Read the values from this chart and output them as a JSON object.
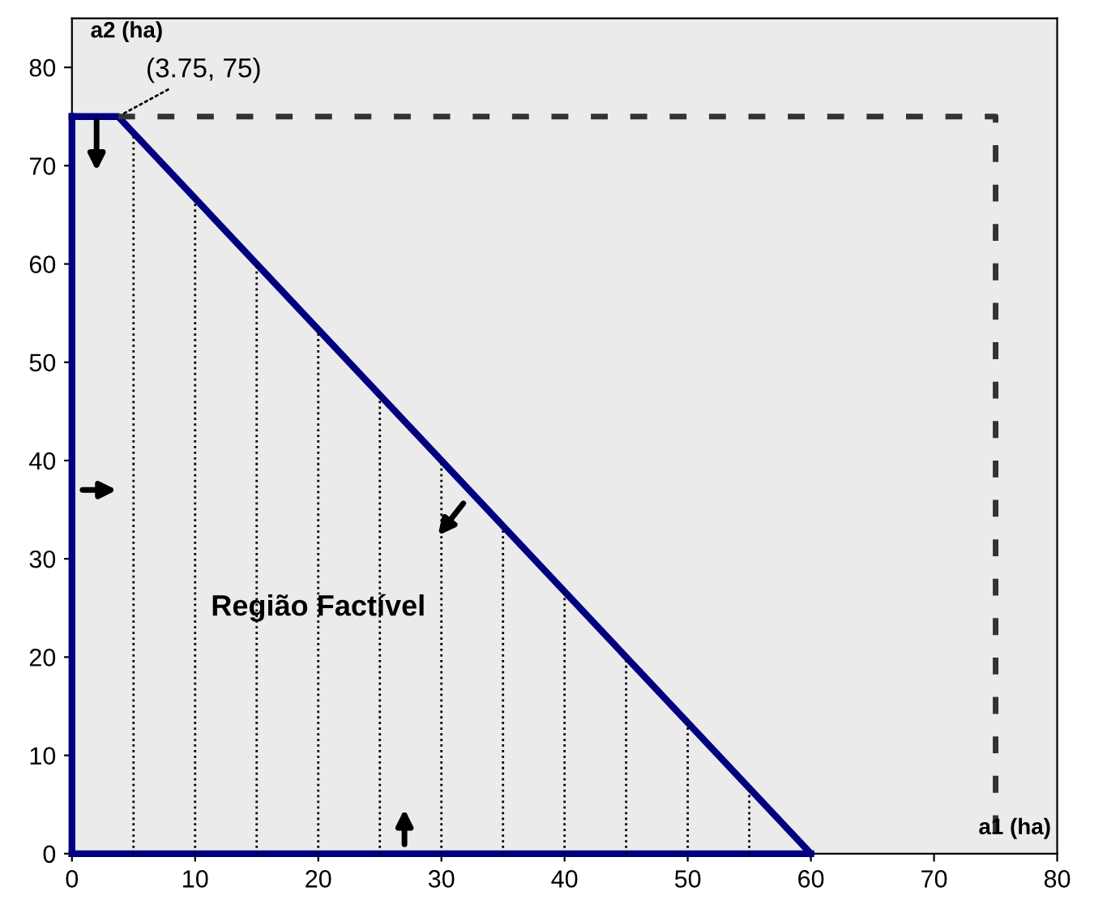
{
  "chart_data": {
    "type": "line",
    "xlabel": "a1 (ha)",
    "ylabel": "a2 (ha)",
    "xlim": [
      0,
      80
    ],
    "ylim": [
      0,
      85
    ],
    "xticks": [
      0,
      10,
      20,
      30,
      40,
      50,
      60,
      70,
      80
    ],
    "yticks": [
      0,
      10,
      20,
      30,
      40,
      50,
      60,
      70,
      80
    ],
    "grid": false,
    "series": [
      {
        "color": "#000080",
        "x": [
          0,
          3.75,
          60
        ],
        "values": [
          75,
          75,
          0
        ],
        "line_style": "solid"
      },
      {
        "color": "#000080",
        "x": [
          0,
          0
        ],
        "values": [
          0,
          75
        ],
        "line_style": "solid"
      },
      {
        "color": "#000080",
        "x": [
          0,
          60
        ],
        "values": [
          0,
          0
        ],
        "line_style": "solid"
      },
      {
        "color": "#333333",
        "x": [
          3.75,
          75,
          75
        ],
        "values": [
          75,
          75,
          0
        ],
        "line_style": "dashed"
      },
      {
        "color": "#000000",
        "x": [
          5,
          5
        ],
        "values": [
          0,
          73.3
        ],
        "line_style": "dotted"
      },
      {
        "color": "#000000",
        "x": [
          10,
          10
        ],
        "values": [
          0,
          66.7
        ],
        "line_style": "dotted"
      },
      {
        "color": "#000000",
        "x": [
          15,
          15
        ],
        "values": [
          0,
          60
        ],
        "line_style": "dotted"
      },
      {
        "color": "#000000",
        "x": [
          20,
          20
        ],
        "values": [
          0,
          53.3
        ],
        "line_style": "dotted"
      },
      {
        "color": "#000000",
        "x": [
          25,
          25
        ],
        "values": [
          0,
          46.7
        ],
        "line_style": "dotted"
      },
      {
        "color": "#000000",
        "x": [
          30,
          30
        ],
        "values": [
          0,
          40
        ],
        "line_style": "dotted"
      },
      {
        "color": "#000000",
        "x": [
          35,
          35
        ],
        "values": [
          0,
          33.3
        ],
        "line_style": "dotted"
      },
      {
        "color": "#000000",
        "x": [
          40,
          40
        ],
        "values": [
          0,
          26.7
        ],
        "line_style": "dotted"
      },
      {
        "color": "#000000",
        "x": [
          45,
          45
        ],
        "values": [
          0,
          20
        ],
        "line_style": "dotted"
      },
      {
        "color": "#000000",
        "x": [
          50,
          50
        ],
        "values": [
          0,
          13.3
        ],
        "line_style": "dotted"
      },
      {
        "color": "#000000",
        "x": [
          55,
          55
        ],
        "values": [
          0,
          6.7
        ],
        "line_style": "dotted"
      }
    ],
    "annotations": [
      {
        "text": "(3.75, 75)",
        "x": 3.75,
        "y": 75
      },
      {
        "text": "Região Factível",
        "x": 20,
        "y": 25
      }
    ]
  }
}
